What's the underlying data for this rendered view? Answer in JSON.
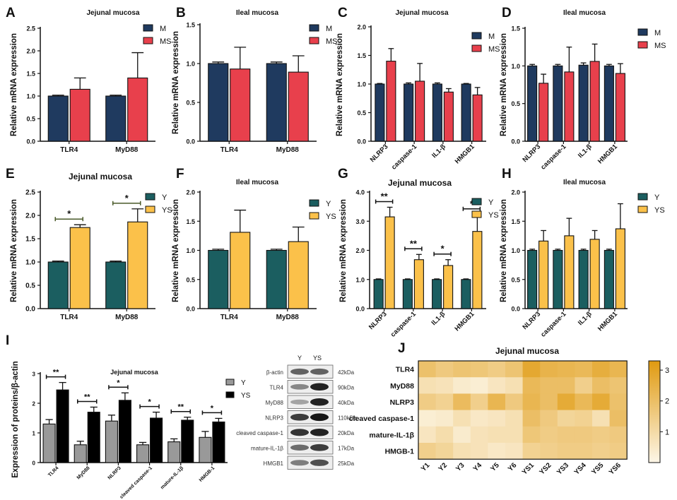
{
  "figure_caption": "Jejunal and ileal mucosa mRNA expression, protein expression and heatmap (panels A–J)",
  "colors": {
    "M": "#1f3a5f",
    "MS": "#e8404c",
    "Y": "#1b5e60",
    "YS": "#fbc14a",
    "WB_Y": "#999999",
    "WB_YS": "#000000",
    "heat_low": "#fdf6e7",
    "heat_high": "#e09a10"
  },
  "chart_data": [
    {
      "id": "A",
      "panel_label": "A",
      "type": "bar",
      "title": "Jejunal mucosa",
      "ylabel": "Relative mRNA expression",
      "xlabel": "",
      "categories": [
        "TLR4",
        "MyD88"
      ],
      "series": [
        {
          "name": "M",
          "color_key": "M",
          "values": [
            1.0,
            1.0
          ],
          "errors": [
            0.02,
            0.02
          ]
        },
        {
          "name": "MS",
          "color_key": "MS",
          "values": [
            1.15,
            1.4
          ],
          "errors": [
            0.25,
            0.56
          ]
        }
      ],
      "ylim": [
        0,
        2.5
      ],
      "yticks": [
        "0.0",
        "0.5",
        "1.0",
        "1.5",
        "2.0",
        "2.5"
      ],
      "legend": "top-right",
      "sig": []
    },
    {
      "id": "B",
      "panel_label": "B",
      "type": "bar",
      "title": "Ileal mucosa",
      "ylabel": "Relative mRNA expression",
      "xlabel": "",
      "categories": [
        "TLR4",
        "MyD88"
      ],
      "series": [
        {
          "name": "M",
          "color_key": "M",
          "values": [
            1.0,
            1.0
          ],
          "errors": [
            0.02,
            0.02
          ]
        },
        {
          "name": "MS",
          "color_key": "MS",
          "values": [
            0.93,
            0.89
          ],
          "errors": [
            0.28,
            0.21
          ]
        }
      ],
      "ylim": [
        0,
        1.5
      ],
      "yticks": [
        "0.0",
        "0.5",
        "1.0",
        "1.5"
      ],
      "legend": "top-right",
      "sig": []
    },
    {
      "id": "C",
      "panel_label": "C",
      "type": "bar",
      "title": "Jejunal mucosa",
      "ylabel": "Relative mRNA expression",
      "xlabel": "",
      "categories": [
        "NLRP3",
        "caspase-1",
        "IL1-β",
        "HMGB1"
      ],
      "series": [
        {
          "name": "M",
          "color_key": "M",
          "values": [
            1.0,
            1.0,
            1.0,
            1.0
          ],
          "errors": [
            0.01,
            0.02,
            0.02,
            0.01
          ]
        },
        {
          "name": "MS",
          "color_key": "MS",
          "values": [
            1.4,
            1.05,
            0.86,
            0.81
          ],
          "errors": [
            0.22,
            0.31,
            0.06,
            0.13
          ]
        }
      ],
      "ylim": [
        0,
        2.0
      ],
      "yticks": [
        "0.0",
        "0.5",
        "1.0",
        "1.5",
        "2.0"
      ],
      "legend": "top-right",
      "sig": []
    },
    {
      "id": "D",
      "panel_label": "D",
      "type": "bar",
      "title": "Ileal mucosa",
      "ylabel": "Relative mRNA expression",
      "xlabel": "",
      "categories": [
        "NLRP3",
        "caspase-1",
        "IL1-β",
        "HMGB1"
      ],
      "series": [
        {
          "name": "M",
          "color_key": "M",
          "values": [
            1.0,
            1.0,
            1.01,
            1.0
          ],
          "errors": [
            0.02,
            0.02,
            0.03,
            0.02
          ]
        },
        {
          "name": "MS",
          "color_key": "MS",
          "values": [
            0.77,
            0.92,
            1.06,
            0.9
          ],
          "errors": [
            0.12,
            0.33,
            0.23,
            0.13
          ]
        }
      ],
      "ylim": [
        0,
        1.5
      ],
      "yticks": [
        "0.0",
        "0.5",
        "1.0",
        "1.5"
      ],
      "legend": "top-right",
      "sig": []
    },
    {
      "id": "E",
      "panel_label": "E",
      "type": "bar",
      "title": "Jejunal mucosa",
      "ylabel": "Relative mRNA expression",
      "xlabel": "",
      "categories": [
        "TLR4",
        "MyD88"
      ],
      "series": [
        {
          "name": "Y",
          "color_key": "Y",
          "values": [
            1.0,
            1.0
          ],
          "errors": [
            0.02,
            0.02
          ]
        },
        {
          "name": "YS",
          "color_key": "YS",
          "values": [
            1.74,
            1.86
          ],
          "errors": [
            0.06,
            0.28
          ]
        }
      ],
      "ylim": [
        0,
        2.5
      ],
      "yticks": [
        "0.0",
        "0.5",
        "1.0",
        "1.5",
        "2.0",
        "2.5"
      ],
      "legend": "top-right",
      "sig": [
        {
          "category": 0,
          "label": "*"
        },
        {
          "category": 1,
          "label": "*"
        }
      ]
    },
    {
      "id": "F",
      "panel_label": "F",
      "type": "bar",
      "title": "Ileal mucosa",
      "ylabel": "Relative mRNA expression",
      "xlabel": "",
      "categories": [
        "TLR4",
        "MyD88"
      ],
      "series": [
        {
          "name": "Y",
          "color_key": "Y",
          "values": [
            1.0,
            1.0
          ],
          "errors": [
            0.02,
            0.02
          ]
        },
        {
          "name": "YS",
          "color_key": "YS",
          "values": [
            1.31,
            1.15
          ],
          "errors": [
            0.38,
            0.25
          ]
        }
      ],
      "ylim": [
        0,
        2.0
      ],
      "yticks": [
        "0.0",
        "0.5",
        "1.0",
        "1.5",
        "2.0"
      ],
      "legend": "top-right",
      "sig": []
    },
    {
      "id": "G",
      "panel_label": "G",
      "type": "bar",
      "title": "Jejunal mucosa",
      "ylabel": "Relative mRNA expression",
      "xlabel": "",
      "categories": [
        "NLRP3",
        "caspase-1",
        "IL1-β",
        "HMGB1"
      ],
      "series": [
        {
          "name": "Y",
          "color_key": "Y",
          "values": [
            1.0,
            1.0,
            1.0,
            1.0
          ],
          "errors": [
            0.02,
            0.02,
            0.02,
            0.02
          ]
        },
        {
          "name": "YS",
          "color_key": "YS",
          "values": [
            3.15,
            1.68,
            1.48,
            2.65
          ],
          "errors": [
            0.33,
            0.18,
            0.2,
            0.58
          ]
        }
      ],
      "ylim": [
        0,
        4.0
      ],
      "yticks": [
        "0.0",
        "1.0",
        "2.0",
        "3.0",
        "4.0"
      ],
      "legend": "top-right",
      "sig": [
        {
          "category": 0,
          "label": "**"
        },
        {
          "category": 1,
          "label": "**"
        },
        {
          "category": 2,
          "label": "*"
        },
        {
          "category": 3,
          "label": "*"
        }
      ]
    },
    {
      "id": "H",
      "panel_label": "H",
      "type": "bar",
      "title": "Ileal mucosa",
      "ylabel": "Relative mRNA expression",
      "xlabel": "",
      "categories": [
        "NLRP3",
        "caspase-1",
        "IL1-β",
        "HMGB1"
      ],
      "series": [
        {
          "name": "Y",
          "color_key": "Y",
          "values": [
            1.0,
            1.0,
            1.0,
            1.0
          ],
          "errors": [
            0.02,
            0.02,
            0.02,
            0.02
          ]
        },
        {
          "name": "YS",
          "color_key": "YS",
          "values": [
            1.16,
            1.25,
            1.19,
            1.37
          ],
          "errors": [
            0.18,
            0.3,
            0.15,
            0.43
          ]
        }
      ],
      "ylim": [
        0,
        2.0
      ],
      "yticks": [
        "0.0",
        "0.5",
        "1.0",
        "1.5",
        "2.0"
      ],
      "legend": "top-right",
      "sig": []
    },
    {
      "id": "I",
      "panel_label": "I",
      "type": "bar",
      "title": "Jejunal mucosa",
      "ylabel": "Expression of proteins/β-actin",
      "xlabel": "",
      "categories": [
        "TLR4",
        "MyD88",
        "NLRP3",
        "cleaved caspase-1",
        "mature-IL-1β",
        "HMGB-1"
      ],
      "series": [
        {
          "name": "Y",
          "color_key": "WB_Y",
          "values": [
            1.3,
            0.6,
            1.4,
            0.6,
            0.7,
            0.85
          ],
          "errors": [
            0.15,
            0.12,
            0.2,
            0.08,
            0.1,
            0.2
          ]
        },
        {
          "name": "YS",
          "color_key": "WB_YS",
          "values": [
            2.45,
            1.7,
            2.1,
            1.5,
            1.43,
            1.37
          ],
          "errors": [
            0.25,
            0.17,
            0.25,
            0.2,
            0.1,
            0.12
          ]
        }
      ],
      "ylim": [
        0,
        3
      ],
      "yticks": [
        "0",
        "1",
        "2",
        "3"
      ],
      "legend": "top-right",
      "sig": [
        {
          "category": 0,
          "label": "**"
        },
        {
          "category": 1,
          "label": "**"
        },
        {
          "category": 2,
          "label": "*"
        },
        {
          "category": 3,
          "label": "*"
        },
        {
          "category": 4,
          "label": "**"
        },
        {
          "category": 5,
          "label": "*"
        }
      ]
    },
    {
      "id": "J",
      "panel_label": "J",
      "type": "heatmap",
      "title": "Jejunal mucosa",
      "rows": [
        "TLR4",
        "MyD88",
        "NLRP3",
        "cleaved caspase-1",
        "mature-IL-1β",
        "HMGB-1"
      ],
      "cols": [
        "Y1",
        "Y2",
        "Y3",
        "Y4",
        "Y5",
        "Y6",
        "YS1",
        "YS2",
        "YS3",
        "YS4",
        "YS5",
        "YS6"
      ],
      "values": [
        [
          1.9,
          1.6,
          1.8,
          1.7,
          1.5,
          1.8,
          2.8,
          2.4,
          2.3,
          2.2,
          2.6,
          2.3
        ],
        [
          0.8,
          0.7,
          0.4,
          0.3,
          0.6,
          0.8,
          2.2,
          2.0,
          2.0,
          1.4,
          2.0,
          1.8
        ],
        [
          1.5,
          1.3,
          2.1,
          1.4,
          2.3,
          1.6,
          2.3,
          2.0,
          2.7,
          2.2,
          2.7,
          1.9
        ],
        [
          0.3,
          0.4,
          0.8,
          0.5,
          0.6,
          0.8,
          2.0,
          1.6,
          1.2,
          1.3,
          0.8,
          2.0
        ],
        [
          0.6,
          0.9,
          0.4,
          0.7,
          0.8,
          0.8,
          1.7,
          1.5,
          1.6,
          1.6,
          1.5,
          1.6
        ],
        [
          1.4,
          1.2,
          0.8,
          0.7,
          0.5,
          0.6,
          1.3,
          1.4,
          1.5,
          1.5,
          1.4,
          1.5
        ]
      ],
      "zlim": [
        0,
        3.3
      ],
      "colorbar_ticks": [
        "1",
        "2",
        "3"
      ]
    }
  ],
  "western_blot": {
    "lane_labels": [
      "Y",
      "YS"
    ],
    "rows": [
      {
        "label": "β-actin",
        "kda": "42kDa",
        "y": 0.55,
        "ys": 0.55
      },
      {
        "label": "TLR4",
        "kda": "90kDa",
        "y": 0.35,
        "ys": 0.9
      },
      {
        "label": "MyD88",
        "kda": "40kDa",
        "y": 0.2,
        "ys": 0.9
      },
      {
        "label": "NLRP3",
        "kda": "110kDa",
        "y": 0.75,
        "ys": 0.95
      },
      {
        "label": "cleaved caspase-1",
        "kda": "20kDa",
        "y": 0.8,
        "ys": 0.9
      },
      {
        "label": "mature-IL-1β",
        "kda": "17kDa",
        "y": 0.5,
        "ys": 0.75
      },
      {
        "label": "HMGB1",
        "kda": "25kDa",
        "y": 0.4,
        "ys": 0.65
      }
    ]
  }
}
